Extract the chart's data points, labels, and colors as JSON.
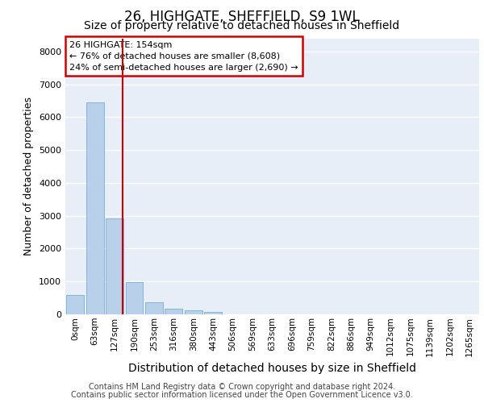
{
  "title1": "26, HIGHGATE, SHEFFIELD, S9 1WL",
  "title2": "Size of property relative to detached houses in Sheffield",
  "xlabel": "Distribution of detached houses by size in Sheffield",
  "ylabel": "Number of detached properties",
  "annotation_line1": "26 HIGHGATE: 154sqm",
  "annotation_line2": "← 76% of detached houses are smaller (8,608)",
  "annotation_line3": "24% of semi-detached houses are larger (2,690) →",
  "footer1": "Contains HM Land Registry data © Crown copyright and database right 2024.",
  "footer2": "Contains public sector information licensed under the Open Government Licence v3.0.",
  "bar_labels": [
    "0sqm",
    "63sqm",
    "127sqm",
    "190sqm",
    "253sqm",
    "316sqm",
    "380sqm",
    "443sqm",
    "506sqm",
    "569sqm",
    "633sqm",
    "696sqm",
    "759sqm",
    "822sqm",
    "886sqm",
    "949sqm",
    "1012sqm",
    "1075sqm",
    "1139sqm",
    "1202sqm",
    "1265sqm"
  ],
  "bar_values": [
    580,
    6450,
    2920,
    980,
    380,
    175,
    130,
    85,
    0,
    0,
    0,
    0,
    0,
    0,
    0,
    0,
    0,
    0,
    0,
    0,
    0
  ],
  "bar_color": "#b8d0ea",
  "bar_edge_color": "#7aadd4",
  "marker_color": "#cc0000",
  "ylim": [
    0,
    8400
  ],
  "yticks": [
    0,
    1000,
    2000,
    3000,
    4000,
    5000,
    6000,
    7000,
    8000
  ],
  "bg_color": "#e8eef8",
  "grid_color": "#ffffff",
  "annot_box_color": "#cc0000",
  "title1_fontsize": 12,
  "title2_fontsize": 10,
  "ylabel_fontsize": 9,
  "xlabel_fontsize": 10,
  "tick_fontsize": 7.5,
  "footer_fontsize": 7
}
